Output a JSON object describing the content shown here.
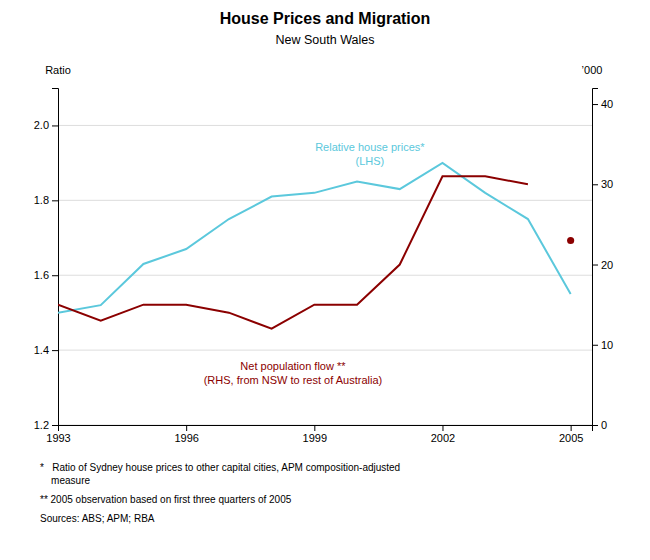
{
  "chart_data": {
    "type": "line",
    "title": "House Prices and Migration",
    "subtitle": "New South Wales",
    "ylabel": "Ratio",
    "y2label": "’000",
    "x": [
      1993,
      1994,
      1995,
      1996,
      1997,
      1998,
      1999,
      2000,
      2001,
      2002,
      2003,
      2004,
      2005
    ],
    "series": [
      {
        "type": "line",
        "color": "#5bc8dc",
        "values": [
          1.5,
          1.52,
          1.63,
          1.67,
          1.75,
          1.81,
          1.82,
          1.85,
          1.83,
          1.9,
          1.82,
          1.75,
          1.55
        ]
      },
      {
        "type": "line",
        "axis": "y2",
        "color": "#8b0000",
        "values": [
          15,
          13,
          15,
          15,
          14,
          12,
          15,
          15,
          20,
          31,
          31,
          30,
          null
        ]
      },
      {
        "type": "scatter",
        "axis": "y2",
        "color": "#8b0000",
        "marker": "circle",
        "values": [
          null,
          null,
          null,
          null,
          null,
          null,
          null,
          null,
          null,
          null,
          null,
          null,
          23
        ]
      }
    ],
    "xlim": [
      1993,
      2005.5
    ],
    "xticks": [
      1993,
      1996,
      1999,
      2002,
      2005
    ],
    "ylim": [
      1.2,
      2.1
    ],
    "yticks": [
      1.2,
      1.4,
      1.6,
      1.8,
      {
        "value": 2.0,
        "label": "2.0"
      }
    ],
    "y2lim": [
      0,
      42
    ],
    "y2ticks": [
      0,
      10,
      20,
      30,
      40
    ],
    "grid": true,
    "annotations": [
      {
        "text": [
          "Relative house prices*",
          "(LHS)"
        ],
        "x": 2000.3,
        "y": 1.96,
        "axis": "y",
        "color": "#5bc8dc"
      },
      {
        "text": [
          "Net population flow **",
          "(RHS, from NSW to rest of Australia)"
        ],
        "x": 1998.5,
        "y": 1.375,
        "axis": "y",
        "color": "#8b0000"
      }
    ],
    "footnotes": [
      [
        "*   Ratio of Sydney house prices to other capital cities, APM composition-adjusted",
        "    measure"
      ],
      [
        "** 2005 observation based on first three quarters of 2005"
      ],
      [
        "Sources: ABS; APM; RBA"
      ]
    ]
  }
}
